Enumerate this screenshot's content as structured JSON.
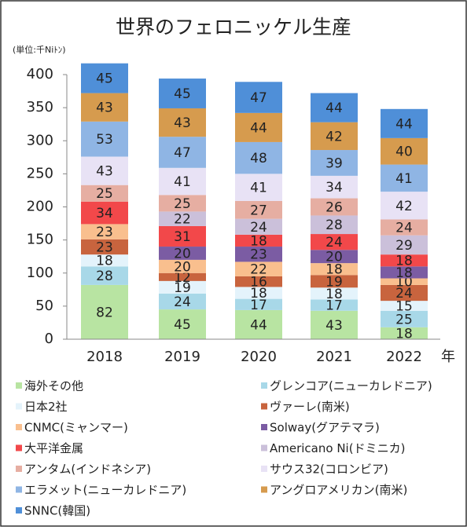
{
  "chart_data": {
    "type": "stacked_bar",
    "title": "世界のフェロニッケル生産",
    "y_unit": "(単位:千Niﾄﾝ)",
    "x_label": "年",
    "categories": [
      "2018",
      "2019",
      "2020",
      "2021",
      "2022"
    ],
    "ylim": [
      0,
      400
    ],
    "yticks": [
      0,
      50,
      100,
      150,
      200,
      250,
      300,
      350,
      400
    ],
    "series": [
      {
        "name": "海外その他",
        "color": "#b8e4a2",
        "values": [
          82,
          45,
          44,
          43,
          18
        ]
      },
      {
        "name": "グレンコア(ニューカレドニア)",
        "color": "#a8d8e8",
        "values": [
          28,
          24,
          17,
          17,
          25
        ]
      },
      {
        "name": "日本2社",
        "color": "#e4f3fb",
        "values": [
          18,
          19,
          18,
          18,
          15
        ]
      },
      {
        "name": "ヴァーレ(南米)",
        "color": "#c8643e",
        "values": [
          23,
          12,
          16,
          19,
          24
        ]
      },
      {
        "name": "CNMC(ミャンマー)",
        "color": "#f9bf8e",
        "values": [
          23,
          20,
          22,
          18,
          10
        ]
      },
      {
        "name": "Solway(グアテマラ)",
        "color": "#7b5ca3",
        "values": [
          null,
          20,
          23,
          20,
          18
        ]
      },
      {
        "name": "大平洋金属",
        "color": "#f2484a",
        "values": [
          34,
          31,
          18,
          24,
          18
        ]
      },
      {
        "name": "Americano Ni(ドミニカ)",
        "color": "#cbc0da",
        "values": [
          null,
          22,
          24,
          28,
          29
        ]
      },
      {
        "name": "アンタム(インドネシア)",
        "color": "#e6aea2",
        "values": [
          25,
          25,
          27,
          26,
          24
        ]
      },
      {
        "name": "サウス32(コロンビア)",
        "color": "#e8e2f5",
        "values": [
          43,
          41,
          41,
          34,
          42
        ]
      },
      {
        "name": "エラメット(ニューカレドニア)",
        "color": "#8fb5e4",
        "values": [
          53,
          47,
          48,
          39,
          41
        ]
      },
      {
        "name": "アングロアメリカン(南米)",
        "color": "#d69b4e",
        "values": [
          43,
          43,
          44,
          42,
          40
        ]
      },
      {
        "name": "SNNC(韓国)",
        "color": "#4f8fd8",
        "values": [
          45,
          45,
          47,
          44,
          44
        ]
      }
    ]
  }
}
